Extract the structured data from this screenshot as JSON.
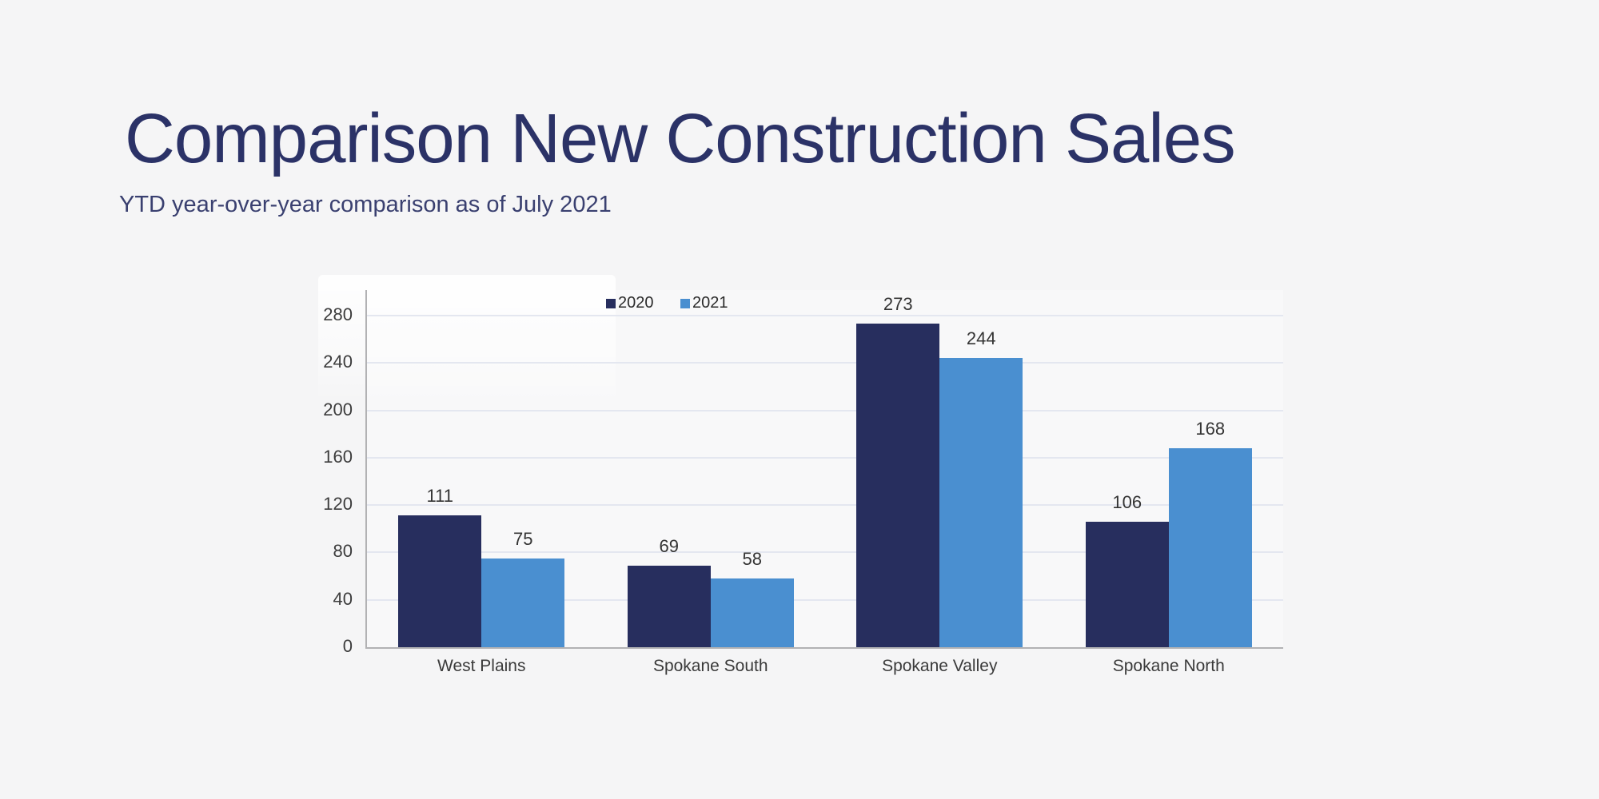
{
  "header": {
    "title": "Comparison New Construction Sales",
    "subtitle": "YTD year-over-year comparison as of July 2021"
  },
  "chart_data": {
    "type": "bar",
    "title": "Comparison New Construction Sales",
    "subtitle": "YTD year-over-year comparison as of July 2021",
    "categories": [
      "West Plains",
      "Spokane South",
      "Spokane Valley",
      "Spokane North"
    ],
    "series": [
      {
        "name": "2020",
        "color": "#272e5e",
        "values": [
          111,
          69,
          273,
          106
        ]
      },
      {
        "name": "2021",
        "color": "#4a8fd0",
        "values": [
          75,
          58,
          244,
          168
        ]
      }
    ],
    "value_labels": {
      "2020": [
        "111",
        "69",
        "273",
        "106"
      ],
      "2021": [
        "75",
        "58",
        "244",
        "168"
      ]
    },
    "xlabel": "",
    "ylabel": "",
    "ylim": [
      0,
      280
    ],
    "yticks": [
      0,
      40,
      80,
      120,
      160,
      200,
      240,
      280
    ],
    "grid": true,
    "legend_position": "top-center"
  },
  "colors": {
    "background": "#f5f5f6",
    "title_text": "#2b3267",
    "subtitle_text": "#3a4070",
    "series_2020": "#272e5e",
    "series_2021": "#4a8fd0",
    "axis_line": "#b2b2b4",
    "grid_line": "#e4e7f0",
    "tick_text": "#3c3c3c",
    "value_text": "#343434",
    "category_text": "#3a3a3a",
    "legend_text": "#2b2b2b"
  }
}
